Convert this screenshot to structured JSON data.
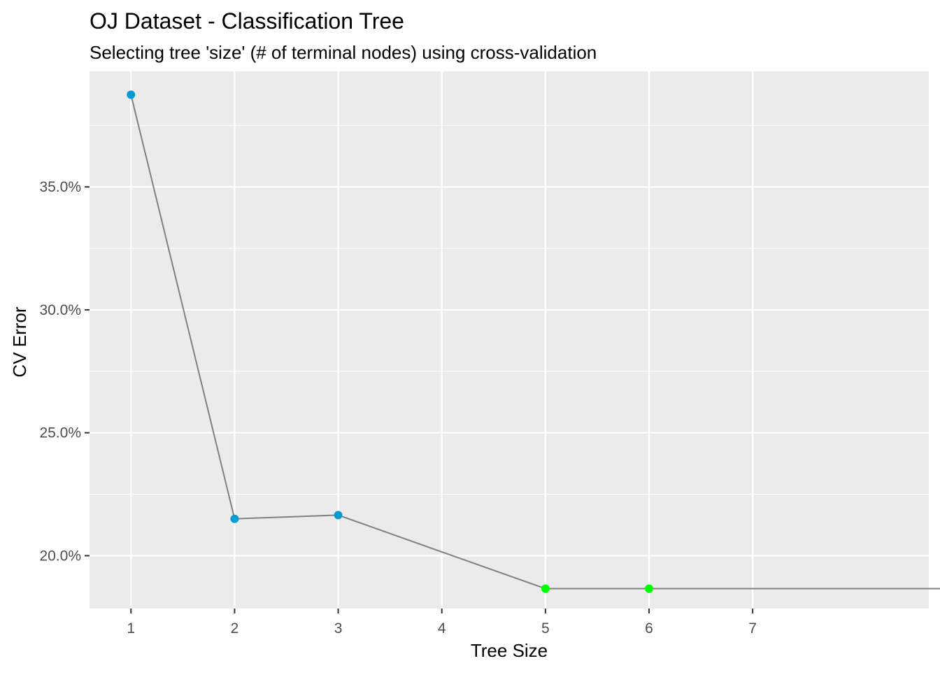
{
  "chart_data": {
    "type": "line",
    "title": "OJ Dataset - Classification Tree",
    "subtitle": "Selecting tree 'size' (# of terminal nodes) using cross-validation",
    "xlabel": "Tree Size",
    "ylabel": "CV Error",
    "x_ticks": [
      1,
      2,
      3,
      4,
      5,
      6,
      7
    ],
    "x_tick_labels": [
      "1",
      "2",
      "3",
      "4",
      "5",
      "6",
      "7"
    ],
    "y_ticks": [
      0.2,
      0.25,
      0.3,
      0.35
    ],
    "y_tick_labels": [
      "20.0%",
      "25.0%",
      "30.0%",
      "35.0%"
    ],
    "xlim": [
      0.6,
      8.7
    ],
    "ylim": [
      0.1785,
      0.397
    ],
    "grid": true,
    "series": [
      {
        "x": [
          1,
          2,
          3,
          5,
          6,
          9
        ],
        "y": [
          0.3875,
          0.215,
          0.2165,
          0.1866,
          0.1866,
          0.1866
        ],
        "point_colors": [
          "#0A99D1",
          "#0A99D1",
          "#0A99D1",
          "#00FF00",
          "#00FF00",
          "#00FF00"
        ]
      }
    ],
    "colors": {
      "panel_background": "#EBEBEB",
      "grid_major": "#FFFFFF",
      "line": "#808080",
      "point_default": "#0A99D1",
      "point_minimum": "#00FF00"
    }
  }
}
